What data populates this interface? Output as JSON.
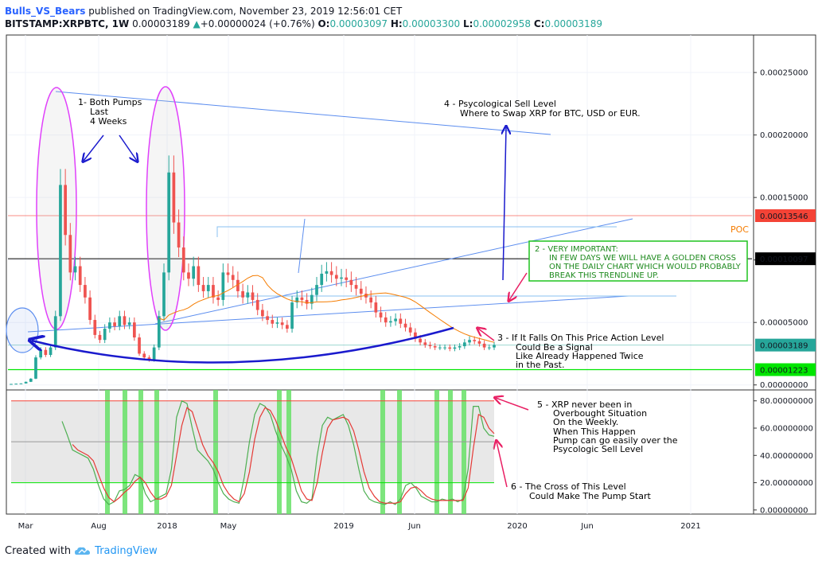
{
  "header": {
    "author": "Bulls_VS_Bears",
    "published": "published on TradingView.com, November 23, 2019 12:56:01 CET",
    "symbol": "BITSTAMP:XRPBTC, 1W",
    "last": "0.00003189",
    "arrow": "▲",
    "change": "+0.00000024 (+0.76%)",
    "o_label": "O:",
    "o": "0.00003097",
    "h_label": "H:",
    "h": "0.00003300",
    "l_label": "L:",
    "l": "0.00002958",
    "c_label": "C:",
    "c": "0.00003189"
  },
  "footer": {
    "created_with": "Created with",
    "brand": "TradingView",
    "logo_icon": "tradingview-cloud-icon"
  },
  "colors": {
    "up": "#26a69a",
    "down": "#ef5350",
    "ma": "#f57c00",
    "trend": "#5b8def",
    "pump_ellipse": "#e040fb",
    "arrow": "#1a1acd",
    "signal_arrow": "#e91e63",
    "k_line": "#4caf50",
    "d_line": "#e53935",
    "signal_bar": "#66e066",
    "level_red": "#f44336",
    "level_green": "#00e600"
  },
  "chart_data": [
    {
      "type": "candlestick",
      "title": "BITSTAMP:XRPBTC, 1W",
      "x_ticks": [
        "Mar",
        "Aug",
        "2018",
        "May",
        "2019",
        "Jun",
        "2020",
        "Jun",
        "2021"
      ],
      "y_ticks": [
        "0.00025000",
        "0.00020000",
        "0.00015000",
        "0.00010000",
        "0.00005000",
        "0.00000000"
      ],
      "ylim": [
        -4e-06,
        0.00028
      ],
      "price_labels": [
        {
          "value": 0.00013546,
          "text": "0.00013546",
          "color": "#f44336"
        },
        {
          "value": 0.00010097,
          "text": "0.00010097",
          "color": "#000000"
        },
        {
          "value": 3.189e-05,
          "text": "0.00003189",
          "color": "#26a69a"
        },
        {
          "value": 1.223e-05,
          "text": "0.00001223",
          "color": "#00e600"
        }
      ],
      "poc_label": "POC",
      "close_series": [
        8e-07,
        1e-06,
        1.2e-06,
        2.5e-06,
        5e-06,
        2.2e-05,
        2.8e-05,
        2.4e-05,
        3e-05,
        5.5e-05,
        0.00016,
        0.00012,
        9e-05,
        9.5e-05,
        8e-05,
        7e-05,
        5.2e-05,
        4e-05,
        3.6e-05,
        4.5e-05,
        5e-05,
        4.7e-05,
        5.5e-05,
        4.8e-05,
        5e-05,
        3.8e-05,
        2.5e-05,
        2.2e-05,
        2e-05,
        3e-05,
        5.5e-05,
        9e-05,
        0.00017,
        0.00013,
        0.00011,
        9e-05,
        8.5e-05,
        9.5e-05,
        8e-05,
        7.5e-05,
        8e-05,
        7e-05,
        6.8e-05,
        9e-05,
        8.8e-05,
        8.4e-05,
        7.5e-05,
        7e-05,
        7.4e-05,
        6.8e-05,
        6e-05,
        5.5e-05,
        5.2e-05,
        4.9e-05,
        5e-05,
        4.8e-05,
        4.5e-05,
        6.6e-05,
        7e-05,
        6.8e-05,
        6.5e-05,
        7.2e-05,
        8e-05,
        8.9e-05,
        9.1e-05,
        8.8e-05,
        8.5e-05,
        8.6e-05,
        8.4e-05,
        8e-05,
        7.7e-05,
        7.3e-05,
        7e-05,
        6.6e-05,
        5.8e-05,
        5.4e-05,
        5e-05,
        5.1e-05,
        5.3e-05,
        4.9e-05,
        4.6e-05,
        4.2e-05,
        3.7e-05,
        3.4e-05,
        3.2e-05,
        3.1e-05,
        3e-05,
        3e-05,
        3e-05,
        2.9e-05,
        3e-05,
        3.1e-05,
        3.4e-05,
        3.6e-05,
        3.5e-05,
        3.3e-05,
        3e-05,
        3e-05,
        3.2e-05
      ]
    },
    {
      "type": "line",
      "name": "stochastic",
      "y_ticks": [
        "80.00000000",
        "60.00000000",
        "40.00000000",
        "20.00000000",
        "0.00000000"
      ],
      "ylim": [
        -3,
        88
      ],
      "overbought": 80,
      "oversold": 20,
      "mid": 50,
      "k_series": [
        65,
        55,
        44,
        42,
        40,
        38,
        30,
        18,
        8,
        4,
        6,
        14,
        15,
        18,
        26,
        24,
        12,
        6,
        8,
        10,
        12,
        30,
        68,
        80,
        78,
        60,
        44,
        40,
        36,
        30,
        20,
        12,
        8,
        6,
        5,
        24,
        50,
        70,
        78,
        76,
        70,
        58,
        48,
        40,
        30,
        14,
        6,
        5,
        8,
        40,
        62,
        68,
        66,
        68,
        70,
        62,
        48,
        30,
        14,
        8,
        6,
        5,
        4,
        6,
        4,
        8,
        18,
        20,
        16,
        10,
        8,
        6,
        6,
        8,
        7,
        8,
        6,
        8,
        30,
        76,
        76,
        60,
        55,
        54
      ],
      "d_series": [
        null,
        null,
        48,
        44,
        42,
        40,
        36,
        26,
        16,
        9,
        6,
        9,
        13,
        16,
        21,
        24,
        20,
        13,
        8,
        8,
        10,
        18,
        40,
        62,
        75,
        72,
        60,
        48,
        40,
        35,
        28,
        18,
        12,
        8,
        6,
        12,
        28,
        52,
        68,
        75,
        73,
        66,
        56,
        46,
        38,
        26,
        14,
        8,
        7,
        20,
        42,
        60,
        66,
        67,
        68,
        66,
        58,
        44,
        28,
        16,
        10,
        6,
        5,
        5,
        5,
        6,
        12,
        16,
        17,
        14,
        10,
        8,
        7,
        7,
        7,
        7,
        7,
        7,
        16,
        45,
        70,
        68,
        60,
        56
      ],
      "signal_bars": [
        2,
        12,
        16,
        20,
        30,
        48,
        58,
        59,
        62,
        80,
        84,
        88,
        92,
        96,
        98
      ]
    }
  ],
  "annotations": {
    "a1": [
      "1- Both Pumps",
      "Last",
      "4 Weeks"
    ],
    "a4": [
      "4 - Psycological Sell Level",
      "Where to Swap XRP for BTC, USD or EUR."
    ],
    "a2": [
      "2 - VERY IMPORTANT:",
      "IN FEW DAYS WE WILL HAVE A GOLDEN CROSS",
      "ON THE DAILY CHART WHICH WOULD PROBABLY",
      "BREAK THIS TRENDLINE UP."
    ],
    "a3": [
      "3 -  If It Falls On This Price Action Level",
      "Could Be a Signal",
      "Like Already Happened Twice",
      "in the Past."
    ],
    "a5": [
      "5 - XRP never been in",
      "Overbought Situation",
      "On the Weekly.",
      "When This Happen",
      "Pump can go easily over the",
      "Psycologic Sell Level"
    ],
    "a6": [
      "6 - The Cross of This Level",
      "Could Make The Pump Start"
    ]
  }
}
